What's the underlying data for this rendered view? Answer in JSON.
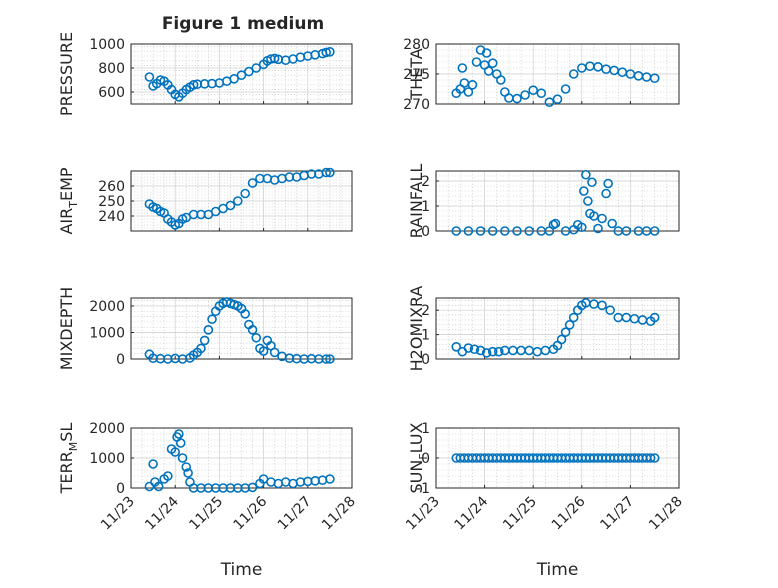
{
  "figure": {
    "title": "Figure 1 medium"
  },
  "colors": {
    "marker": "#0072BD",
    "axis": "#262626",
    "grid": "#cfcfcf"
  },
  "chart_data": [
    {
      "id": "pressure",
      "type": "scatter",
      "title": "Figure 1 medium",
      "ylabel": "PRESSURE",
      "ylabel_sub": null,
      "xlim": [
        "2023-11-23",
        "2023-11-28"
      ],
      "ylim": [
        500,
        1000
      ],
      "yticks": [
        600,
        800,
        1000
      ],
      "xticks": [
        "11/23",
        "11/24",
        "11/25",
        "11/26",
        "11/27",
        "11/28"
      ],
      "xlabel": "",
      "grid": true,
      "points": [
        [
          "2023-11-23 10:00",
          725
        ],
        [
          "2023-11-23 12:00",
          650
        ],
        [
          "2023-11-23 14:00",
          670
        ],
        [
          "2023-11-23 16:00",
          700
        ],
        [
          "2023-11-23 18:00",
          690
        ],
        [
          "2023-11-23 20:00",
          660
        ],
        [
          "2023-11-23 22:00",
          620
        ],
        [
          "2023-11-24 00:00",
          580
        ],
        [
          "2023-11-24 02:00",
          560
        ],
        [
          "2023-11-24 04:00",
          590
        ],
        [
          "2023-11-24 06:00",
          620
        ],
        [
          "2023-11-24 08:00",
          640
        ],
        [
          "2023-11-24 10:00",
          660
        ],
        [
          "2023-11-24 12:00",
          665
        ],
        [
          "2023-11-24 16:00",
          668
        ],
        [
          "2023-11-24 20:00",
          670
        ],
        [
          "2023-11-25 00:00",
          675
        ],
        [
          "2023-11-25 04:00",
          690
        ],
        [
          "2023-11-25 08:00",
          710
        ],
        [
          "2023-11-25 12:00",
          740
        ],
        [
          "2023-11-25 16:00",
          770
        ],
        [
          "2023-11-25 20:00",
          800
        ],
        [
          "2023-11-26 00:00",
          830
        ],
        [
          "2023-11-26 02:00",
          860
        ],
        [
          "2023-11-26 04:00",
          875
        ],
        [
          "2023-11-26 06:00",
          880
        ],
        [
          "2023-11-26 08:00",
          872
        ],
        [
          "2023-11-26 12:00",
          865
        ],
        [
          "2023-11-26 16:00",
          875
        ],
        [
          "2023-11-26 20:00",
          890
        ],
        [
          "2023-11-27 00:00",
          900
        ],
        [
          "2023-11-27 04:00",
          910
        ],
        [
          "2023-11-27 08:00",
          920
        ],
        [
          "2023-11-27 10:00",
          930
        ],
        [
          "2023-11-27 12:00",
          935
        ]
      ]
    },
    {
      "id": "theta",
      "type": "scatter",
      "ylabel": "THETA",
      "ylabel_sub": null,
      "xlim": [
        "2023-11-23",
        "2023-11-28"
      ],
      "ylim": [
        270,
        280
      ],
      "yticks": [
        270,
        275,
        280
      ],
      "xticks": [
        "11/23",
        "11/24",
        "11/25",
        "11/26",
        "11/27",
        "11/28"
      ],
      "xlabel": "",
      "grid": true,
      "points": [
        [
          "2023-11-23 10:00",
          271.8
        ],
        [
          "2023-11-23 12:00",
          272.5
        ],
        [
          "2023-11-23 13:00",
          276.0
        ],
        [
          "2023-11-23 14:00",
          273.5
        ],
        [
          "2023-11-23 16:00",
          272.0
        ],
        [
          "2023-11-23 18:00",
          273.2
        ],
        [
          "2023-11-23 20:00",
          277.0
        ],
        [
          "2023-11-23 22:00",
          279.0
        ],
        [
          "2023-11-24 00:00",
          276.5
        ],
        [
          "2023-11-24 01:00",
          278.5
        ],
        [
          "2023-11-24 02:00",
          275.5
        ],
        [
          "2023-11-24 04:00",
          276.8
        ],
        [
          "2023-11-24 06:00",
          275.0
        ],
        [
          "2023-11-24 08:00",
          274.0
        ],
        [
          "2023-11-24 10:00",
          272.0
        ],
        [
          "2023-11-24 12:00",
          271.0
        ],
        [
          "2023-11-24 16:00",
          270.9
        ],
        [
          "2023-11-24 20:00",
          271.5
        ],
        [
          "2023-11-25 00:00",
          272.3
        ],
        [
          "2023-11-25 04:00",
          271.8
        ],
        [
          "2023-11-25 08:00",
          270.3
        ],
        [
          "2023-11-25 12:00",
          270.8
        ],
        [
          "2023-11-25 16:00",
          272.5
        ],
        [
          "2023-11-25 20:00",
          275.0
        ],
        [
          "2023-11-26 00:00",
          276.0
        ],
        [
          "2023-11-26 04:00",
          276.3
        ],
        [
          "2023-11-26 08:00",
          276.2
        ],
        [
          "2023-11-26 12:00",
          275.8
        ],
        [
          "2023-11-26 16:00",
          275.6
        ],
        [
          "2023-11-26 20:00",
          275.3
        ],
        [
          "2023-11-27 00:00",
          275.0
        ],
        [
          "2023-11-27 04:00",
          274.7
        ],
        [
          "2023-11-27 08:00",
          274.5
        ],
        [
          "2023-11-27 12:00",
          274.3
        ]
      ]
    },
    {
      "id": "air_temp",
      "type": "scatter",
      "ylabel": "AIR",
      "ylabel_sub": "T",
      "ylabel_tail": "EMP",
      "xlim": [
        "2023-11-23",
        "2023-11-28"
      ],
      "ylim": [
        230,
        270
      ],
      "yticks": [
        240,
        250,
        260
      ],
      "xticks": [
        "11/23",
        "11/24",
        "11/25",
        "11/26",
        "11/27",
        "11/28"
      ],
      "xlabel": "",
      "grid": true,
      "points": [
        [
          "2023-11-23 10:00",
          248
        ],
        [
          "2023-11-23 12:00",
          246
        ],
        [
          "2023-11-23 14:00",
          245
        ],
        [
          "2023-11-23 16:00",
          243
        ],
        [
          "2023-11-23 18:00",
          242
        ],
        [
          "2023-11-23 20:00",
          238
        ],
        [
          "2023-11-23 22:00",
          236
        ],
        [
          "2023-11-24 00:00",
          234
        ],
        [
          "2023-11-24 02:00",
          235
        ],
        [
          "2023-11-24 04:00",
          238
        ],
        [
          "2023-11-24 06:00",
          239
        ],
        [
          "2023-11-24 10:00",
          241
        ],
        [
          "2023-11-24 14:00",
          241
        ],
        [
          "2023-11-24 18:00",
          241
        ],
        [
          "2023-11-24 22:00",
          243
        ],
        [
          "2023-11-25 02:00",
          245
        ],
        [
          "2023-11-25 06:00",
          247
        ],
        [
          "2023-11-25 10:00",
          250
        ],
        [
          "2023-11-25 14:00",
          255
        ],
        [
          "2023-11-25 18:00",
          262
        ],
        [
          "2023-11-25 22:00",
          265
        ],
        [
          "2023-11-26 02:00",
          265
        ],
        [
          "2023-11-26 06:00",
          264
        ],
        [
          "2023-11-26 10:00",
          265
        ],
        [
          "2023-11-26 14:00",
          266
        ],
        [
          "2023-11-26 18:00",
          266
        ],
        [
          "2023-11-26 22:00",
          267
        ],
        [
          "2023-11-27 02:00",
          268
        ],
        [
          "2023-11-27 06:00",
          268
        ],
        [
          "2023-11-27 10:00",
          269
        ],
        [
          "2023-11-27 12:00",
          269
        ]
      ]
    },
    {
      "id": "rainfall",
      "type": "scatter",
      "ylabel": "RAINFALL",
      "ylabel_sub": null,
      "xlim": [
        "2023-11-23",
        "2023-11-28"
      ],
      "ylim": [
        0,
        2.4
      ],
      "yticks": [
        0,
        1,
        2
      ],
      "xticks": [
        "11/23",
        "11/24",
        "11/25",
        "11/26",
        "11/27",
        "11/28"
      ],
      "xlabel": "",
      "grid": true,
      "points": [
        [
          "2023-11-23 10:00",
          0
        ],
        [
          "2023-11-23 16:00",
          0
        ],
        [
          "2023-11-23 22:00",
          0
        ],
        [
          "2023-11-24 04:00",
          0
        ],
        [
          "2023-11-24 10:00",
          0
        ],
        [
          "2023-11-24 16:00",
          0
        ],
        [
          "2023-11-24 22:00",
          0
        ],
        [
          "2023-11-25 04:00",
          0
        ],
        [
          "2023-11-25 08:00",
          0
        ],
        [
          "2023-11-25 10:00",
          0.25
        ],
        [
          "2023-11-25 11:00",
          0.3
        ],
        [
          "2023-11-25 16:00",
          0
        ],
        [
          "2023-11-25 20:00",
          0.05
        ],
        [
          "2023-11-25 22:00",
          0.25
        ],
        [
          "2023-11-26 00:00",
          0.15
        ],
        [
          "2023-11-26 01:00",
          1.6
        ],
        [
          "2023-11-26 02:00",
          2.25
        ],
        [
          "2023-11-26 03:00",
          1.2
        ],
        [
          "2023-11-26 04:00",
          0.7
        ],
        [
          "2023-11-26 05:00",
          1.95
        ],
        [
          "2023-11-26 06:00",
          0.6
        ],
        [
          "2023-11-26 08:00",
          0.1
        ],
        [
          "2023-11-26 10:00",
          0.5
        ],
        [
          "2023-11-26 12:00",
          1.5
        ],
        [
          "2023-11-26 13:00",
          1.9
        ],
        [
          "2023-11-26 15:00",
          0.3
        ],
        [
          "2023-11-26 18:00",
          0
        ],
        [
          "2023-11-26 22:00",
          0
        ],
        [
          "2023-11-27 04:00",
          0
        ],
        [
          "2023-11-27 08:00",
          0
        ],
        [
          "2023-11-27 12:00",
          0
        ]
      ]
    },
    {
      "id": "mixdepth",
      "type": "scatter",
      "ylabel": "MIXDEPTH",
      "ylabel_sub": null,
      "xlim": [
        "2023-11-23",
        "2023-11-28"
      ],
      "ylim": [
        0,
        2300
      ],
      "yticks": [
        0,
        1000,
        2000
      ],
      "xticks": [
        "11/23",
        "11/24",
        "11/25",
        "11/26",
        "11/27",
        "11/28"
      ],
      "xlabel": "",
      "grid": true,
      "points": [
        [
          "2023-11-23 10:00",
          180
        ],
        [
          "2023-11-23 12:00",
          30
        ],
        [
          "2023-11-23 16:00",
          10
        ],
        [
          "2023-11-23 20:00",
          0
        ],
        [
          "2023-11-24 00:00",
          20
        ],
        [
          "2023-11-24 04:00",
          0
        ],
        [
          "2023-11-24 08:00",
          40
        ],
        [
          "2023-11-24 10:00",
          150
        ],
        [
          "2023-11-24 12:00",
          250
        ],
        [
          "2023-11-24 14:00",
          400
        ],
        [
          "2023-11-24 16:00",
          700
        ],
        [
          "2023-11-24 18:00",
          1100
        ],
        [
          "2023-11-24 20:00",
          1500
        ],
        [
          "2023-11-24 22:00",
          1800
        ],
        [
          "2023-11-25 00:00",
          2000
        ],
        [
          "2023-11-25 02:00",
          2100
        ],
        [
          "2023-11-25 04:00",
          2150
        ],
        [
          "2023-11-25 06:00",
          2100
        ],
        [
          "2023-11-25 08:00",
          2050
        ],
        [
          "2023-11-25 10:00",
          2000
        ],
        [
          "2023-11-25 12:00",
          1900
        ],
        [
          "2023-11-25 14:00",
          1700
        ],
        [
          "2023-11-25 16:00",
          1300
        ],
        [
          "2023-11-25 18:00",
          1100
        ],
        [
          "2023-11-25 20:00",
          800
        ],
        [
          "2023-11-25 22:00",
          400
        ],
        [
          "2023-11-26 00:00",
          300
        ],
        [
          "2023-11-26 02:00",
          700
        ],
        [
          "2023-11-26 04:00",
          500
        ],
        [
          "2023-11-26 06:00",
          250
        ],
        [
          "2023-11-26 10:00",
          100
        ],
        [
          "2023-11-26 14:00",
          30
        ],
        [
          "2023-11-26 18:00",
          10
        ],
        [
          "2023-11-26 22:00",
          0
        ],
        [
          "2023-11-27 02:00",
          10
        ],
        [
          "2023-11-27 06:00",
          0
        ],
        [
          "2023-11-27 10:00",
          0
        ],
        [
          "2023-11-27 12:00",
          0
        ]
      ]
    },
    {
      "id": "h2omixra",
      "type": "scatter",
      "ylabel": "H2OMIXRA",
      "ylabel_sub": null,
      "xlim": [
        "2023-11-23",
        "2023-11-28"
      ],
      "ylim": [
        0,
        2.5
      ],
      "yticks": [
        0,
        1,
        2
      ],
      "xticks": [
        "11/23",
        "11/24",
        "11/25",
        "11/26",
        "11/27",
        "11/28"
      ],
      "xlabel": "",
      "grid": true,
      "points": [
        [
          "2023-11-23 10:00",
          0.5
        ],
        [
          "2023-11-23 13:00",
          0.3
        ],
        [
          "2023-11-23 16:00",
          0.45
        ],
        [
          "2023-11-23 19:00",
          0.4
        ],
        [
          "2023-11-23 22:00",
          0.35
        ],
        [
          "2023-11-24 01:00",
          0.25
        ],
        [
          "2023-11-24 04:00",
          0.3
        ],
        [
          "2023-11-24 07:00",
          0.3
        ],
        [
          "2023-11-24 10:00",
          0.35
        ],
        [
          "2023-11-24 14:00",
          0.35
        ],
        [
          "2023-11-24 18:00",
          0.35
        ],
        [
          "2023-11-24 22:00",
          0.35
        ],
        [
          "2023-11-25 02:00",
          0.3
        ],
        [
          "2023-11-25 06:00",
          0.35
        ],
        [
          "2023-11-25 10:00",
          0.4
        ],
        [
          "2023-11-25 12:00",
          0.55
        ],
        [
          "2023-11-25 14:00",
          0.8
        ],
        [
          "2023-11-25 16:00",
          1.1
        ],
        [
          "2023-11-25 18:00",
          1.4
        ],
        [
          "2023-11-25 20:00",
          1.7
        ],
        [
          "2023-11-25 22:00",
          2.0
        ],
        [
          "2023-11-26 00:00",
          2.2
        ],
        [
          "2023-11-26 02:00",
          2.3
        ],
        [
          "2023-11-26 06:00",
          2.25
        ],
        [
          "2023-11-26 10:00",
          2.2
        ],
        [
          "2023-11-26 14:00",
          2.0
        ],
        [
          "2023-11-26 18:00",
          1.7
        ],
        [
          "2023-11-26 22:00",
          1.7
        ],
        [
          "2023-11-27 02:00",
          1.65
        ],
        [
          "2023-11-27 06:00",
          1.6
        ],
        [
          "2023-11-27 10:00",
          1.55
        ],
        [
          "2023-11-27 12:00",
          1.7
        ]
      ]
    },
    {
      "id": "terr_msl",
      "type": "scatter",
      "ylabel": "TERR",
      "ylabel_sub": "M",
      "ylabel_tail": "SL",
      "xlim": [
        "2023-11-23",
        "2023-11-28"
      ],
      "ylim": [
        0,
        2000
      ],
      "yticks": [
        0,
        1000,
        2000
      ],
      "xticks": [
        "11/23",
        "11/24",
        "11/25",
        "11/26",
        "11/27",
        "11/28"
      ],
      "xlabel": "Time",
      "grid": true,
      "points": [
        [
          "2023-11-23 10:00",
          50
        ],
        [
          "2023-11-23 12:00",
          800
        ],
        [
          "2023-11-23 13:00",
          200
        ],
        [
          "2023-11-23 15:00",
          50
        ],
        [
          "2023-11-23 18:00",
          300
        ],
        [
          "2023-11-23 20:00",
          400
        ],
        [
          "2023-11-23 22:00",
          1300
        ],
        [
          "2023-11-24 00:00",
          1200
        ],
        [
          "2023-11-24 01:00",
          1700
        ],
        [
          "2023-11-24 02:00",
          1800
        ],
        [
          "2023-11-24 03:00",
          1500
        ],
        [
          "2023-11-24 04:00",
          1000
        ],
        [
          "2023-11-24 06:00",
          700
        ],
        [
          "2023-11-24 07:00",
          500
        ],
        [
          "2023-11-24 08:00",
          200
        ],
        [
          "2023-11-24 10:00",
          0
        ],
        [
          "2023-11-24 14:00",
          0
        ],
        [
          "2023-11-24 18:00",
          0
        ],
        [
          "2023-11-24 22:00",
          0
        ],
        [
          "2023-11-25 02:00",
          0
        ],
        [
          "2023-11-25 06:00",
          0
        ],
        [
          "2023-11-25 10:00",
          0
        ],
        [
          "2023-11-25 14:00",
          0
        ],
        [
          "2023-11-25 18:00",
          20
        ],
        [
          "2023-11-25 22:00",
          150
        ],
        [
          "2023-11-26 00:00",
          300
        ],
        [
          "2023-11-26 04:00",
          200
        ],
        [
          "2023-11-26 08:00",
          150
        ],
        [
          "2023-11-26 12:00",
          200
        ],
        [
          "2023-11-26 16:00",
          150
        ],
        [
          "2023-11-26 20:00",
          200
        ],
        [
          "2023-11-27 00:00",
          220
        ],
        [
          "2023-11-27 04:00",
          240
        ],
        [
          "2023-11-27 08:00",
          260
        ],
        [
          "2023-11-27 12:00",
          300
        ]
      ]
    },
    {
      "id": "sun_flux",
      "type": "scatter",
      "ylabel": "SUN",
      "ylabel_sub": "F",
      "ylabel_tail": "LUX",
      "xlim": [
        "2023-11-23",
        "2023-11-28"
      ],
      "ylim": [
        -1,
        1
      ],
      "yticks": [
        -1,
        0,
        1
      ],
      "xticks": [
        "11/23",
        "11/24",
        "11/25",
        "11/26",
        "11/27",
        "11/28"
      ],
      "xlabel": "Time",
      "grid": true,
      "points_constant": {
        "value": 0,
        "from": "2023-11-23 10:00",
        "to": "2023-11-27 12:00",
        "step_hours": 2
      }
    }
  ]
}
